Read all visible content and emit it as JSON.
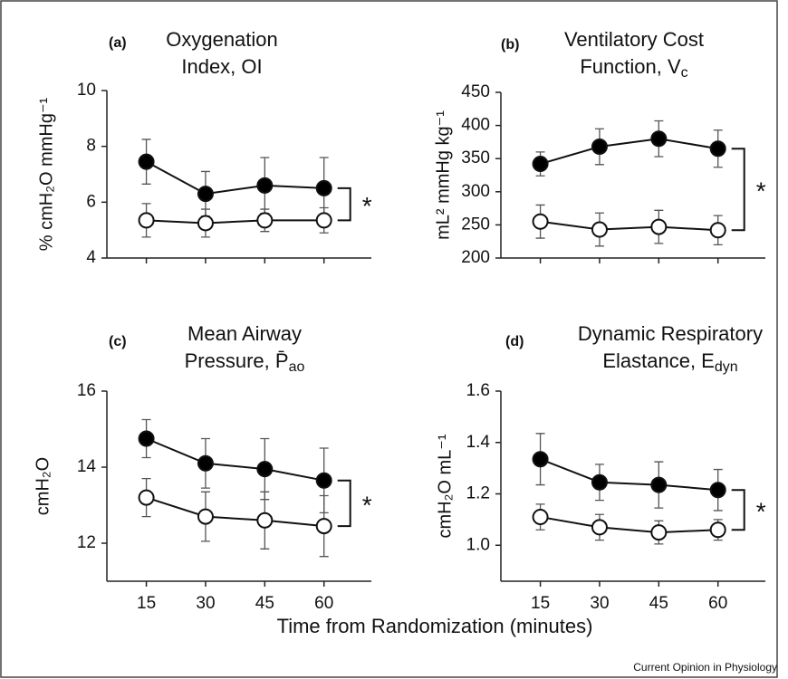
{
  "chart_data": [
    {
      "type": "line",
      "panel": "(a)",
      "title": [
        "Oxygenation",
        "Index, OI"
      ],
      "ylabel": "% cmH₂O mmHg⁻¹",
      "x": [
        15,
        30,
        45,
        60
      ],
      "xlim": [
        5,
        72
      ],
      "xticks": [
        15,
        30,
        45,
        60
      ],
      "show_xtick_labels": false,
      "ylim": [
        4,
        10
      ],
      "yticks": [
        4,
        6,
        8,
        10
      ],
      "annotation": "*",
      "series": [
        {
          "color": "#000000",
          "values": [
            7.45,
            6.3,
            6.6,
            6.5
          ],
          "errors": [
            0.8,
            0.8,
            1.0,
            1.1
          ]
        },
        {
          "color": "#ffffff",
          "values": [
            5.35,
            5.25,
            5.35,
            5.35
          ],
          "errors": [
            0.6,
            0.5,
            0.4,
            0.45
          ]
        }
      ]
    },
    {
      "type": "line",
      "panel": "(b)",
      "title": [
        "Ventilatory Cost",
        "Function, V"
      ],
      "title_sub": "c",
      "ylabel": "mL² mmHg kg⁻¹",
      "x": [
        15,
        30,
        45,
        60
      ],
      "xlim": [
        5,
        72
      ],
      "xticks": [
        15,
        30,
        45,
        60
      ],
      "show_xtick_labels": false,
      "ylim": [
        200,
        450
      ],
      "yticks": [
        200,
        250,
        300,
        350,
        400,
        450
      ],
      "annotation": "*",
      "series": [
        {
          "color": "#000000",
          "values": [
            342,
            368,
            380,
            365
          ],
          "errors": [
            18,
            27,
            27,
            28
          ]
        },
        {
          "color": "#ffffff",
          "values": [
            255,
            243,
            247,
            242
          ],
          "errors": [
            25,
            25,
            25,
            22
          ]
        }
      ]
    },
    {
      "type": "line",
      "panel": "(c)",
      "title": [
        "Mean Airway",
        "Pressure, P̄"
      ],
      "title_sub": "ao",
      "ylabel": "cmH₂O",
      "x": [
        15,
        30,
        45,
        60
      ],
      "xlim": [
        5,
        72
      ],
      "xticks": [
        15,
        30,
        45,
        60
      ],
      "show_xtick_labels": true,
      "ylim": [
        11,
        16
      ],
      "yticks": [
        12,
        14,
        16
      ],
      "annotation": "*",
      "series": [
        {
          "color": "#000000",
          "values": [
            14.75,
            14.1,
            13.95,
            13.65
          ],
          "errors": [
            0.5,
            0.65,
            0.8,
            0.85
          ]
        },
        {
          "color": "#ffffff",
          "values": [
            13.2,
            12.7,
            12.6,
            12.45
          ],
          "errors": [
            0.5,
            0.65,
            0.75,
            0.8
          ]
        }
      ]
    },
    {
      "type": "line",
      "panel": "(d)",
      "title": [
        "Dynamic Respiratory",
        "Elastance, E"
      ],
      "title_sub": "dyn",
      "ylabel": "cmH₂O mL⁻¹",
      "x": [
        15,
        30,
        45,
        60
      ],
      "xlim": [
        5,
        72
      ],
      "xticks": [
        15,
        30,
        45,
        60
      ],
      "show_xtick_labels": true,
      "ylim": [
        0.86,
        1.6
      ],
      "yticks": [
        {
          "value": 1,
          "label": "1.0"
        },
        1.2,
        1.4,
        1.6
      ],
      "annotation": "*",
      "series": [
        {
          "color": "#000000",
          "values": [
            1.335,
            1.245,
            1.235,
            1.215
          ],
          "errors": [
            0.1,
            0.07,
            0.09,
            0.08
          ]
        },
        {
          "color": "#ffffff",
          "values": [
            1.11,
            1.07,
            1.05,
            1.06
          ],
          "errors": [
            0.05,
            0.05,
            0.045,
            0.04
          ]
        }
      ]
    }
  ],
  "x_label": "Time from Randomization (minutes)",
  "credit": "Current Opinion in Physiology"
}
